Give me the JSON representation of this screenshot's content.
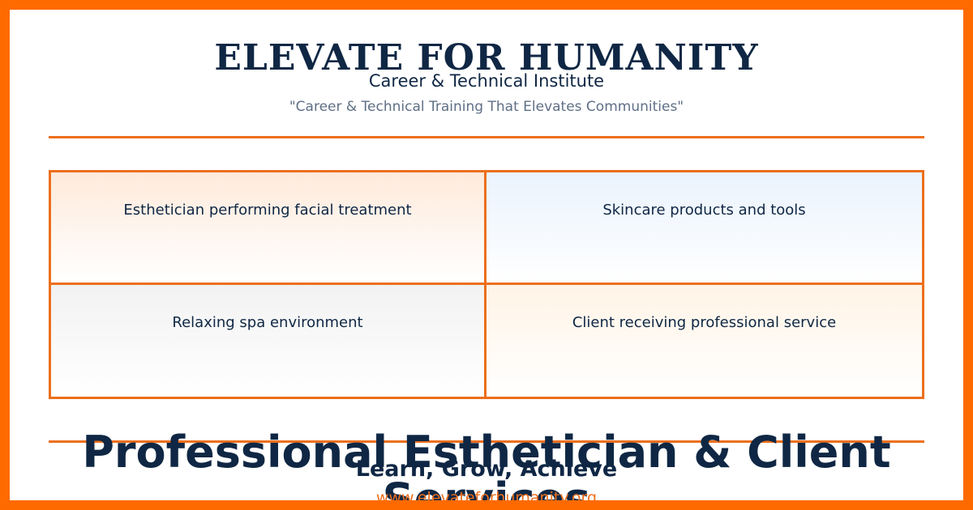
{
  "header": {
    "brand": "ELEVATE FOR HUMANITY",
    "subtitle": "Career & Technical Institute",
    "tagline": "\"Career & Technical Training That Elevates Communities\""
  },
  "image_grid": {
    "cells": [
      {
        "label": "Esthetician performing facial treatment"
      },
      {
        "label": "Skincare products and tools"
      },
      {
        "label": "Relaxing spa environment"
      },
      {
        "label": "Client receiving professional service"
      }
    ]
  },
  "footer": {
    "headline": "Professional Esthetician & Client Services",
    "slogan": "Learn, Grow, Achieve",
    "url": "www.elevateforhumanity.org"
  },
  "colors": {
    "border": "#ff6a00",
    "accent": "#ec6f1c",
    "navy": "#0f2744",
    "muted": "#5f6f86"
  }
}
